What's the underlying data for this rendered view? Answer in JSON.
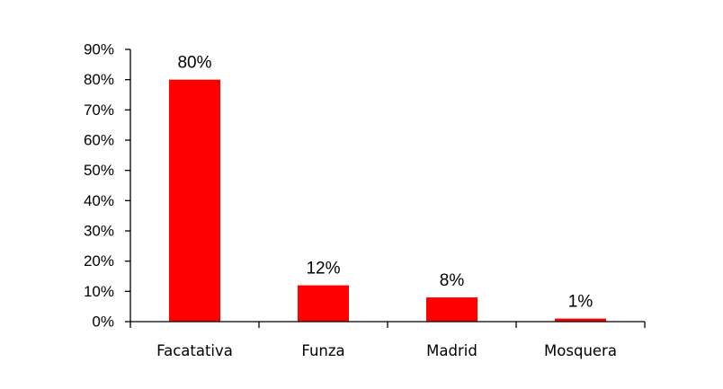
{
  "chart_data": {
    "type": "bar",
    "categories": [
      "Facatativa",
      "Funza",
      "Madrid",
      "Mosquera"
    ],
    "values": [
      80,
      12,
      8,
      1
    ],
    "data_labels": [
      "80%",
      "12%",
      "8%",
      "1%"
    ],
    "y_tick_labels": [
      "0%",
      "10%",
      "20%",
      "30%",
      "40%",
      "50%",
      "60%",
      "70%",
      "80%",
      "90%"
    ],
    "ylim": [
      0,
      90
    ],
    "y_tick_step": 10,
    "bar_color": "#ff0000",
    "grid": false,
    "legend": "none"
  }
}
